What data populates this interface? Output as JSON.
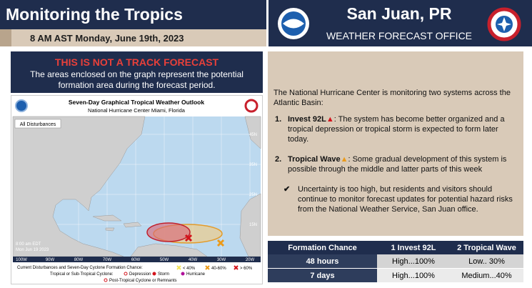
{
  "header": {
    "title": "Monitoring the Tropics",
    "date": "8 AM AST Monday, June 19th, 2023",
    "office_city": "San Juan, PR",
    "office_name": "WEATHER FORECAST OFFICE"
  },
  "notice": {
    "title": "THIS IS NOT A TRACK FORECAST",
    "text": "The areas enclosed on the graph represent the potential formation area during the forecast period."
  },
  "map": {
    "title": "Seven-Day Graphical Tropical Weather Outlook",
    "subtitle": "National Hurricane Center  Miami, Florida",
    "button": "All Disturbances",
    "timestamp": [
      "8:00 am EDT",
      "Mon Jun 19 2023"
    ],
    "lat_labels": [
      "45N",
      "35N",
      "25N",
      "15N"
    ],
    "lon_labels": [
      "100W",
      "90W",
      "80W",
      "70W",
      "60W",
      "50W",
      "40W",
      "30W",
      "20W"
    ],
    "legend": {
      "formation_label": "Current Disturbances and Seven-Day Cyclone Formation Chance:",
      "chances": [
        "< 40%",
        "40-60%",
        "> 60%"
      ],
      "cyclone_label": "Tropical or Sub-Tropical Cyclone:",
      "cyclones": [
        "Depression",
        "Storm",
        "Hurricane"
      ],
      "post_tropical": "Post-Tropical Cyclone or Remnants"
    }
  },
  "summary": {
    "intro": "The National Hurricane Center is monitoring two systems across the Atlantic Basin:",
    "items": [
      {
        "number": "1.",
        "name": "Invest 92L",
        "text": ": The system has become better organized and a tropical depression or tropical storm is expected  to form later today."
      },
      {
        "number": "2.",
        "name": "Tropical Wave",
        "text": ": Some gradual development of this system is possible through the middle and latter parts of this week"
      }
    ],
    "note": "Uncertainty is too high, but residents and visitors should continue to monitor forecast updates for potential hazard risks from the National Weather Service, San Juan office."
  },
  "table": {
    "header": [
      "Formation Chance",
      "1 Invest 92L",
      "2 Tropical Wave"
    ],
    "rows": [
      [
        "48 hours",
        "High...100%",
        "Low.. 30%"
      ],
      [
        "7 days",
        "High...100%",
        "Medium...40%"
      ]
    ]
  }
}
